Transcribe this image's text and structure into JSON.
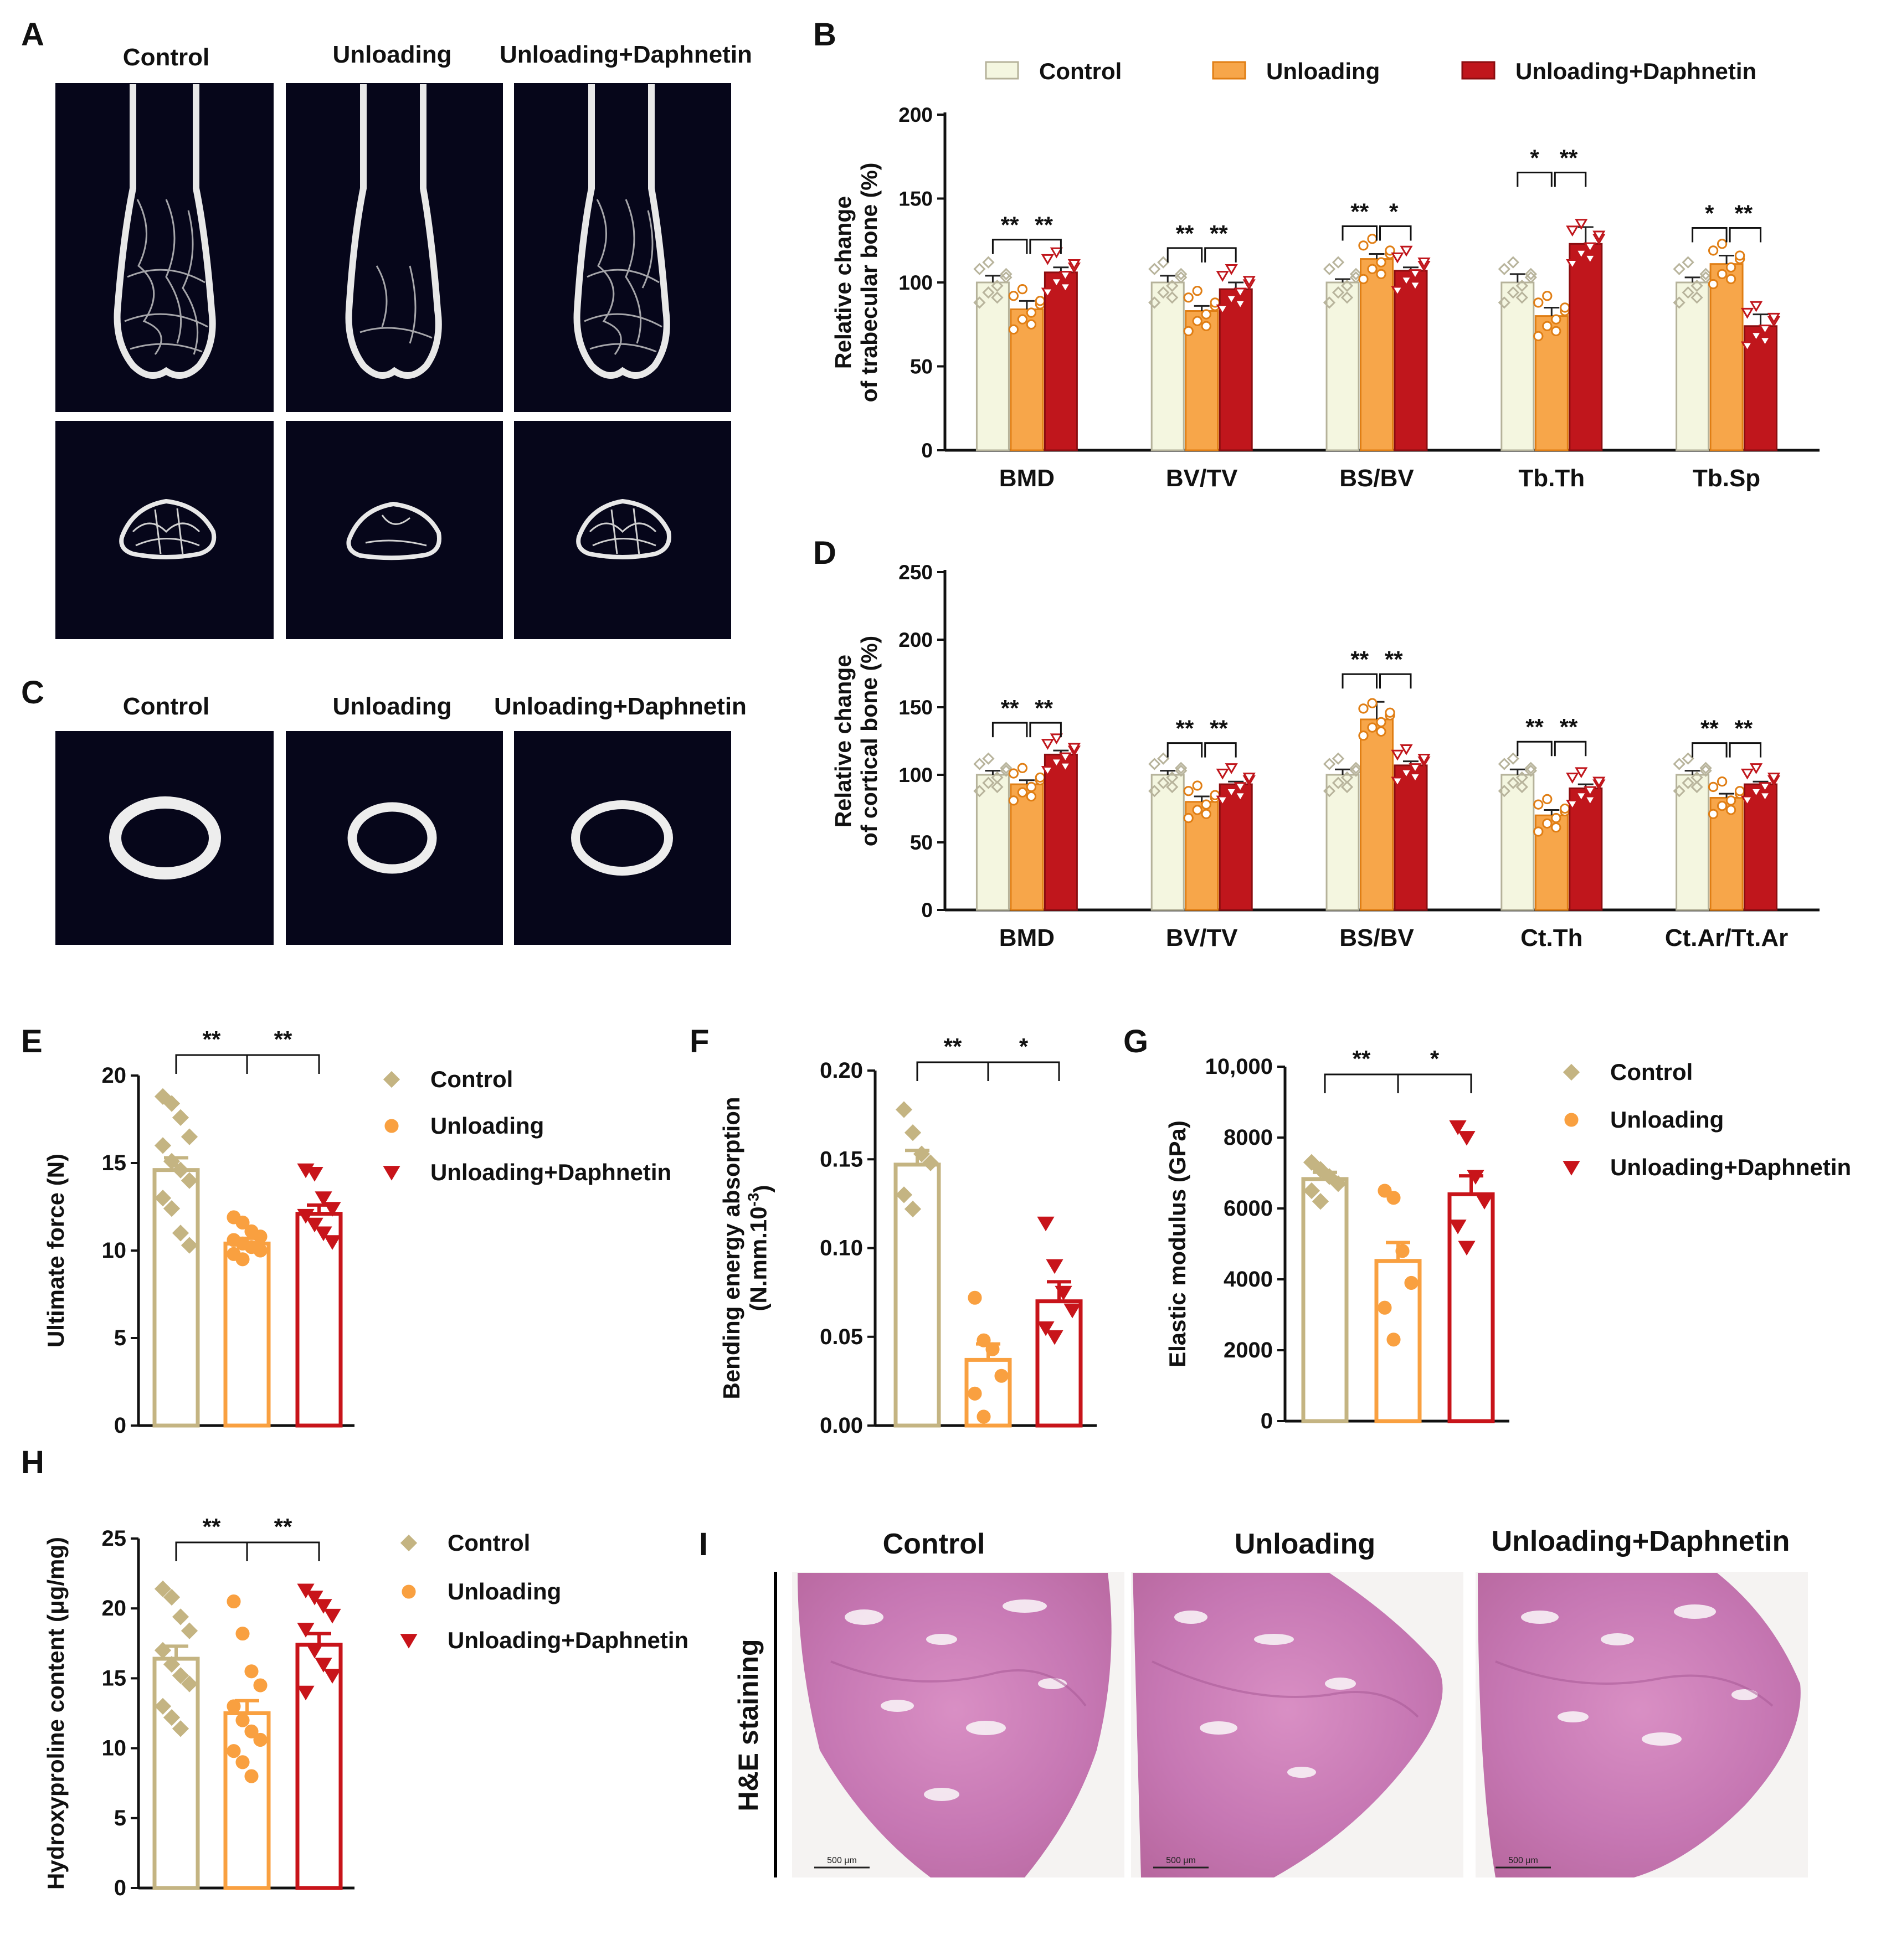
{
  "panels": {
    "A": {
      "label": "A",
      "columns": [
        "Control",
        "Unloading",
        "Unloading+Daphnetin"
      ]
    },
    "C": {
      "label": "C",
      "columns": [
        "Control",
        "Unloading",
        "Unloading+Daphnetin"
      ]
    },
    "I": {
      "label": "I",
      "columns": [
        "Control",
        "Unloading",
        "Unloading+Daphnetin"
      ],
      "row_label": "H&E staining",
      "scale_bar": "500 μm"
    }
  },
  "colors": {
    "control": "#f4f6e0",
    "control_stroke": "#b5b29a",
    "unloading": "#f7a64a",
    "unloading_stroke": "#e07e14",
    "daphnetin": "#c0161c",
    "daphnetin_stroke": "#8b0d10",
    "tan": "#c4b482",
    "orange": "#f9a040",
    "red": "#c8141a"
  },
  "chart_data": [
    {
      "id": "B",
      "label": "B",
      "type": "bar",
      "title": "",
      "ylabel": "Relative change of trabecular bone (%)",
      "ylabel_lines": [
        "Relative change",
        "of trabecular bone (%)"
      ],
      "ylim": [
        0,
        200
      ],
      "yticks": [
        0,
        50,
        100,
        150,
        200
      ],
      "tick_labels": [
        "0",
        "50",
        "100",
        "150",
        "200"
      ],
      "legend": [
        "Control",
        "Unloading",
        "Unloading+Daphnetin"
      ],
      "categories": [
        "BMD",
        "BV/TV",
        "BS/BV",
        "Tb.Th",
        "Tb.Sp"
      ],
      "series": [
        {
          "name": "Control",
          "values": [
            100,
            100,
            100,
            100,
            100
          ],
          "errors": [
            4,
            4,
            2,
            5,
            3
          ]
        },
        {
          "name": "Unloading",
          "values": [
            84,
            83,
            114,
            80,
            111
          ],
          "errors": [
            5,
            3,
            3,
            5,
            5
          ]
        },
        {
          "name": "Unloading+Daphnetin",
          "values": [
            106,
            96,
            107,
            123,
            74
          ],
          "errors": [
            3,
            4,
            2,
            10,
            7
          ]
        }
      ],
      "significance": [
        [
          "**",
          "**"
        ],
        [
          "**",
          "**"
        ],
        [
          "**",
          "*"
        ],
        [
          "*",
          "**"
        ],
        [
          "*",
          "**"
        ]
      ]
    },
    {
      "id": "D",
      "label": "D",
      "type": "bar",
      "title": "",
      "ylabel": "Relative change of cortical bone (%)",
      "ylabel_lines": [
        "Relative change",
        "of cortical bone (%)"
      ],
      "ylim": [
        0,
        250
      ],
      "yticks": [
        0,
        50,
        100,
        150,
        200,
        250
      ],
      "tick_labels": [
        "0",
        "50",
        "100",
        "150",
        "200",
        "250"
      ],
      "categories": [
        "BMD",
        "BV/TV",
        "BS/BV",
        "Ct.Th",
        "Ct.Ar/Tt.Ar"
      ],
      "series": [
        {
          "name": "Control",
          "values": [
            100,
            100,
            100,
            100,
            100
          ],
          "errors": [
            3,
            3,
            4,
            4,
            3
          ]
        },
        {
          "name": "Unloading",
          "values": [
            93,
            80,
            141,
            70,
            83
          ],
          "errors": [
            3,
            4,
            13,
            4,
            3
          ]
        },
        {
          "name": "Unloading+Daphnetin",
          "values": [
            115,
            93,
            107,
            90,
            93
          ],
          "errors": [
            3,
            2,
            3,
            3,
            2
          ]
        }
      ],
      "significance": [
        [
          "**",
          "**"
        ],
        [
          "**",
          "**"
        ],
        [
          "**",
          "**"
        ],
        [
          "**",
          "**"
        ],
        [
          "**",
          "**"
        ]
      ]
    },
    {
      "id": "E",
      "label": "E",
      "type": "bar",
      "ylabel": "Ultimate force (N)",
      "ylim": [
        0,
        20
      ],
      "yticks": [
        0,
        5,
        10,
        15,
        20
      ],
      "tick_labels": [
        "0",
        "5",
        "10",
        "15",
        "20"
      ],
      "legend": [
        "Control",
        "Unloading",
        "Unloading+Daphnetin"
      ],
      "categories": [
        "Control",
        "Unloading",
        "Unloading+Daphnetin"
      ],
      "values": [
        14.6,
        10.4,
        12.1
      ],
      "errors": [
        0.7,
        0.3,
        0.5
      ],
      "points": [
        [
          18.8,
          18.4,
          17.6,
          16.5,
          16.0,
          15.1,
          14.6,
          14.0,
          13.0,
          12.4,
          11.0,
          10.3
        ],
        [
          11.9,
          11.6,
          11.1,
          10.8,
          10.6,
          10.4,
          10.2,
          10.0,
          9.8,
          9.5
        ],
        [
          14.6,
          14.4,
          13.0,
          12.4,
          12.0,
          11.5,
          11.0,
          10.5
        ]
      ],
      "significance": [
        "**",
        "**"
      ]
    },
    {
      "id": "F",
      "label": "F",
      "type": "bar",
      "ylabel": "Bending energy absorption (N.mm.10-3)",
      "ylabel_lines": [
        "Bending energy absorption",
        "(N.mm.10",
        "-3",
        ")"
      ],
      "ylim": [
        0,
        0.2
      ],
      "yticks": [
        0,
        0.05,
        0.1,
        0.15,
        0.2
      ],
      "tick_labels": [
        "0.00",
        "0.05",
        "0.10",
        "0.15",
        "0.20"
      ],
      "categories": [
        "Control",
        "Unloading",
        "Unloading+Daphnetin"
      ],
      "values": [
        0.147,
        0.037,
        0.07
      ],
      "errors": [
        0.008,
        0.009,
        0.011
      ],
      "points": [
        [
          0.178,
          0.165,
          0.153,
          0.148,
          0.13,
          0.122
        ],
        [
          0.072,
          0.048,
          0.043,
          0.028,
          0.018,
          0.005
        ],
        [
          0.114,
          0.09,
          0.075,
          0.065,
          0.055,
          0.05
        ]
      ],
      "significance": [
        "**",
        "*"
      ]
    },
    {
      "id": "G",
      "label": "G",
      "type": "bar",
      "ylabel": "Elastic modulus (GPa)",
      "ylim": [
        0,
        10000
      ],
      "yticks": [
        0,
        2000,
        4000,
        6000,
        8000,
        10000
      ],
      "tick_labels": [
        "0",
        "2000",
        "4000",
        "6000",
        "8000",
        "10,000"
      ],
      "legend": [
        "Control",
        "Unloading",
        "Unloading+Daphnetin"
      ],
      "categories": [
        "Control",
        "Unloading",
        "Unloading+Daphnetin"
      ],
      "values": [
        6830,
        4520,
        6400
      ],
      "errors": [
        190,
        520,
        520
      ],
      "points": [
        [
          7300,
          7100,
          6900,
          6700,
          6500,
          6200
        ],
        [
          6500,
          6300,
          4800,
          3900,
          3200,
          2300
        ],
        [
          8300,
          8000,
          6900,
          6200,
          5500,
          4900
        ]
      ],
      "significance": [
        "**",
        "*"
      ]
    },
    {
      "id": "H",
      "label": "H",
      "type": "bar",
      "ylabel": "Hydroxyproline content (μg/mg)",
      "ylim": [
        0,
        25
      ],
      "yticks": [
        0,
        5,
        10,
        15,
        20,
        25
      ],
      "tick_labels": [
        "0",
        "5",
        "10",
        "15",
        "20",
        "25"
      ],
      "legend": [
        "Control",
        "Unloading",
        "Unloading+Daphnetin"
      ],
      "categories": [
        "Control",
        "Unloading",
        "Unloading+Daphnetin"
      ],
      "values": [
        16.4,
        12.5,
        17.4
      ],
      "errors": [
        0.9,
        0.9,
        0.8
      ],
      "points": [
        [
          21.4,
          20.8,
          19.4,
          18.4,
          17.0,
          16.0,
          15.2,
          14.6,
          13.0,
          12.2,
          11.4
        ],
        [
          20.5,
          18.2,
          15.5,
          14.5,
          13.0,
          12.0,
          11.2,
          10.6,
          9.8,
          9.0,
          8.0
        ],
        [
          21.3,
          20.8,
          20.2,
          19.5,
          18.5,
          17.0,
          16.0,
          15.2,
          14.0
        ]
      ],
      "significance": [
        "**",
        "**"
      ]
    }
  ]
}
